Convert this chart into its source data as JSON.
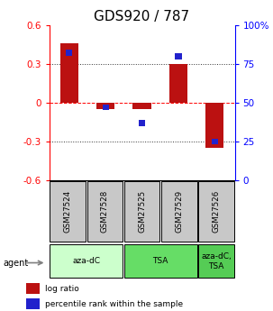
{
  "title": "GDS920 / 787",
  "samples": [
    "GSM27524",
    "GSM27528",
    "GSM27525",
    "GSM27529",
    "GSM27526"
  ],
  "log_ratio": [
    0.46,
    -0.05,
    -0.05,
    0.3,
    -0.35
  ],
  "percentile_rank": [
    82,
    47,
    37,
    80,
    25
  ],
  "ylim_left": [
    -0.6,
    0.6
  ],
  "ylim_right": [
    0,
    100
  ],
  "yticks_left": [
    -0.6,
    -0.3,
    0.0,
    0.3,
    0.6
  ],
  "ytick_labels_left": [
    "-0.6",
    "-0.3",
    "0",
    "0.3",
    "0.6"
  ],
  "yticks_right": [
    0,
    25,
    50,
    75,
    100
  ],
  "ytick_labels_right": [
    "0",
    "25",
    "50",
    "75",
    "100%"
  ],
  "bar_color": "#bb1111",
  "dot_color": "#2222cc",
  "agent_groups": [
    {
      "label": "aza-dC",
      "start": 0,
      "end": 2,
      "color": "#ccffcc"
    },
    {
      "label": "TSA",
      "start": 2,
      "end": 4,
      "color": "#66dd66"
    },
    {
      "label": "aza-dC,\nTSA",
      "start": 4,
      "end": 5,
      "color": "#55cc55"
    }
  ],
  "agent_label": "agent",
  "legend_red": "log ratio",
  "legend_blue": "percentile rank within the sample",
  "title_fontsize": 11,
  "tick_fontsize": 7.5
}
